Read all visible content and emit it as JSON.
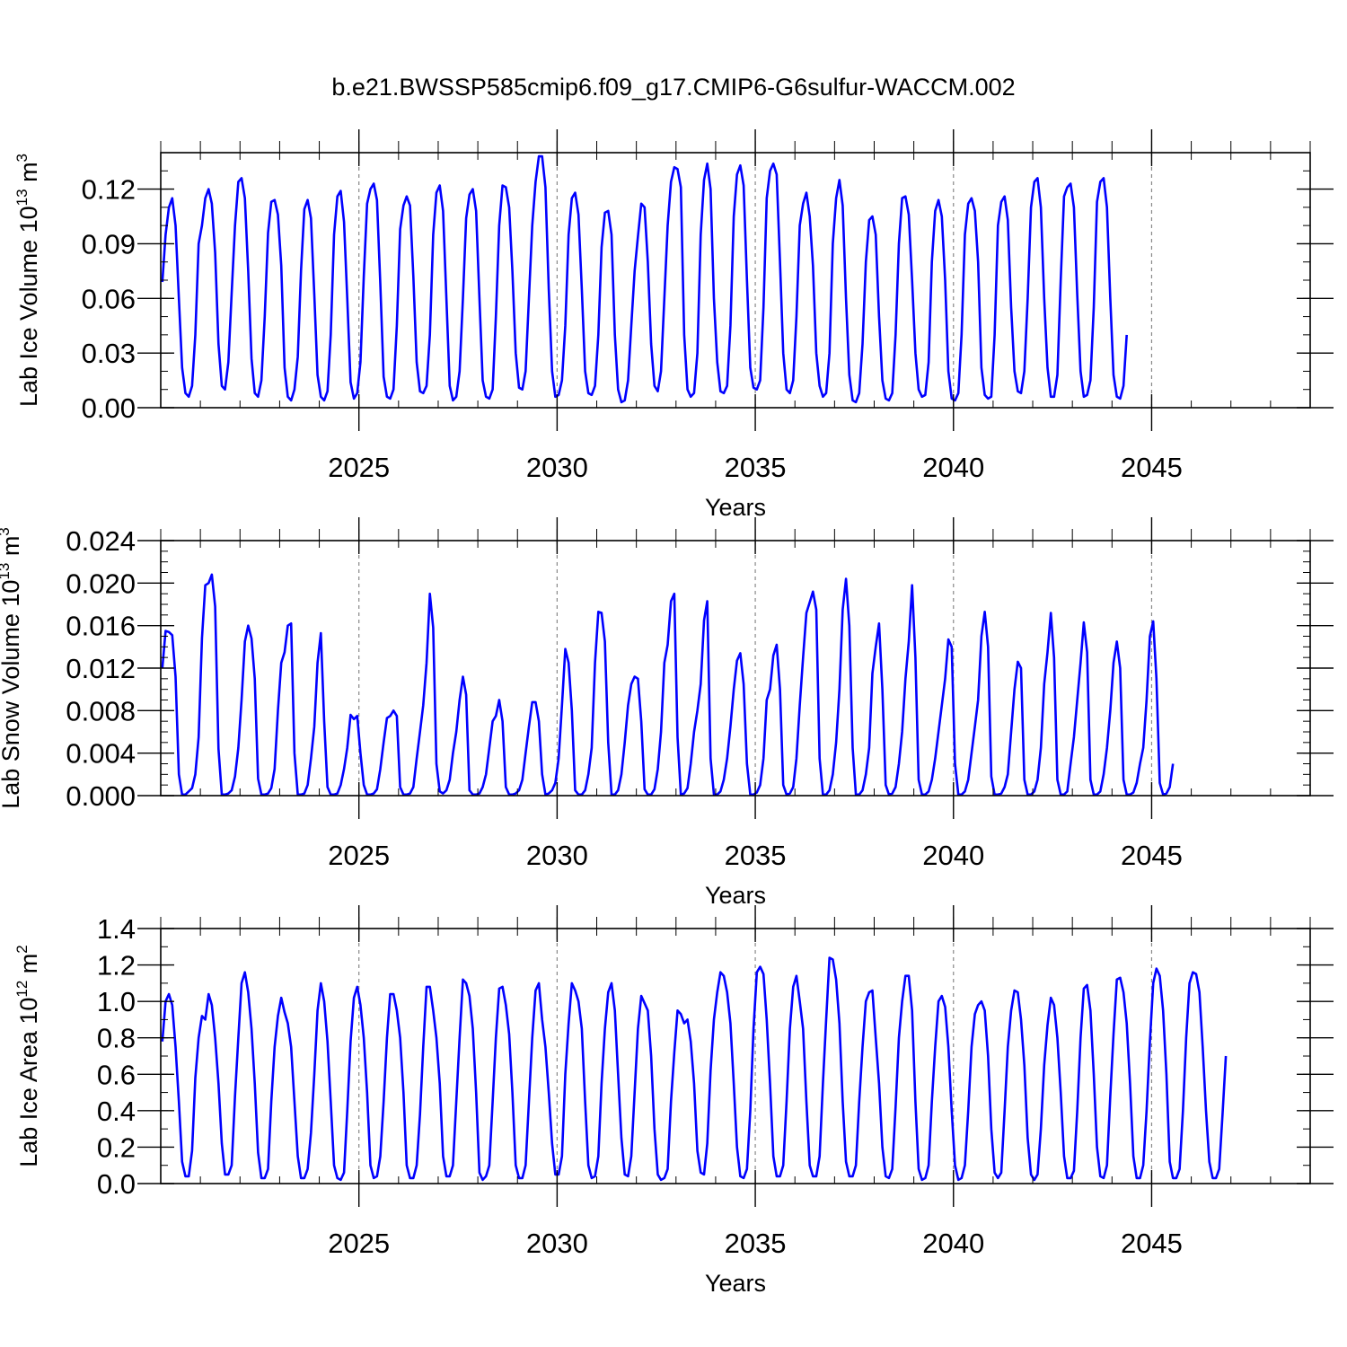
{
  "title": "b.e21.BWSSP585cmip6.f09_g17.CMIP6-G6sulfur-WACCM.002",
  "colors": {
    "line": "#0000ff",
    "axis": "#000000",
    "gridline": "#888888"
  },
  "chart_data": [
    {
      "type": "line",
      "name": "ice-volume",
      "ylabel": {
        "base": "Lab Ice Volume 10",
        "exp": "13",
        "unit": " m",
        "unit_exp": "3"
      },
      "xlabel": "Years",
      "xlim": [
        2020.0,
        2049.0
      ],
      "ylim": [
        0.0,
        0.14
      ],
      "yticks": [
        0.0,
        0.03,
        0.06,
        0.09,
        0.12
      ],
      "ytick_labels": [
        "0.00",
        "0.03",
        "0.06",
        "0.09",
        "0.12"
      ],
      "yminor_step": 0.01,
      "xticks": [
        2025,
        2030,
        2035,
        2040,
        2045
      ],
      "xtick_labels": [
        "2025",
        "2030",
        "2035",
        "2040",
        "2045"
      ],
      "vlines": [
        2025,
        2030,
        2035,
        2040,
        2045
      ],
      "grid": false,
      "start": 2020.04,
      "step": 0.08333,
      "values": [
        0.069,
        0.095,
        0.11,
        0.115,
        0.1,
        0.06,
        0.022,
        0.008,
        0.006,
        0.012,
        0.04,
        0.09,
        0.1,
        0.115,
        0.12,
        0.112,
        0.085,
        0.035,
        0.012,
        0.01,
        0.025,
        0.063,
        0.1,
        0.124,
        0.126,
        0.115,
        0.075,
        0.027,
        0.008,
        0.006,
        0.015,
        0.05,
        0.096,
        0.113,
        0.114,
        0.106,
        0.078,
        0.022,
        0.006,
        0.004,
        0.01,
        0.028,
        0.075,
        0.109,
        0.114,
        0.104,
        0.062,
        0.018,
        0.006,
        0.004,
        0.009,
        0.04,
        0.095,
        0.116,
        0.119,
        0.102,
        0.06,
        0.014,
        0.005,
        0.008,
        0.025,
        0.072,
        0.112,
        0.12,
        0.123,
        0.114,
        0.068,
        0.017,
        0.006,
        0.005,
        0.01,
        0.045,
        0.098,
        0.111,
        0.116,
        0.111,
        0.072,
        0.025,
        0.009,
        0.008,
        0.012,
        0.04,
        0.095,
        0.118,
        0.122,
        0.108,
        0.06,
        0.012,
        0.004,
        0.006,
        0.02,
        0.06,
        0.104,
        0.117,
        0.12,
        0.108,
        0.06,
        0.015,
        0.006,
        0.005,
        0.01,
        0.05,
        0.1,
        0.122,
        0.121,
        0.11,
        0.075,
        0.03,
        0.011,
        0.01,
        0.02,
        0.06,
        0.1,
        0.124,
        0.138,
        0.138,
        0.121,
        0.065,
        0.02,
        0.006,
        0.007,
        0.015,
        0.045,
        0.095,
        0.115,
        0.118,
        0.106,
        0.065,
        0.02,
        0.008,
        0.007,
        0.012,
        0.04,
        0.088,
        0.107,
        0.108,
        0.095,
        0.04,
        0.01,
        0.003,
        0.004,
        0.015,
        0.045,
        0.075,
        0.094,
        0.112,
        0.11,
        0.08,
        0.035,
        0.012,
        0.009,
        0.02,
        0.06,
        0.1,
        0.124,
        0.132,
        0.131,
        0.121,
        0.04,
        0.01,
        0.006,
        0.008,
        0.03,
        0.095,
        0.125,
        0.134,
        0.12,
        0.06,
        0.025,
        0.009,
        0.008,
        0.012,
        0.045,
        0.105,
        0.128,
        0.133,
        0.122,
        0.07,
        0.022,
        0.011,
        0.01,
        0.015,
        0.055,
        0.115,
        0.13,
        0.134,
        0.128,
        0.08,
        0.03,
        0.01,
        0.008,
        0.015,
        0.05,
        0.1,
        0.112,
        0.118,
        0.105,
        0.078,
        0.03,
        0.012,
        0.006,
        0.008,
        0.03,
        0.09,
        0.115,
        0.125,
        0.111,
        0.06,
        0.018,
        0.004,
        0.003,
        0.008,
        0.035,
        0.08,
        0.103,
        0.105,
        0.095,
        0.05,
        0.015,
        0.005,
        0.004,
        0.008,
        0.04,
        0.09,
        0.115,
        0.116,
        0.106,
        0.07,
        0.03,
        0.01,
        0.006,
        0.007,
        0.025,
        0.08,
        0.108,
        0.114,
        0.105,
        0.07,
        0.02,
        0.005,
        0.004,
        0.008,
        0.04,
        0.095,
        0.112,
        0.115,
        0.108,
        0.08,
        0.022,
        0.007,
        0.005,
        0.006,
        0.04,
        0.1,
        0.113,
        0.116,
        0.103,
        0.055,
        0.02,
        0.009,
        0.008,
        0.02,
        0.06,
        0.11,
        0.124,
        0.126,
        0.11,
        0.06,
        0.022,
        0.006,
        0.006,
        0.018,
        0.07,
        0.116,
        0.121,
        0.123,
        0.11,
        0.062,
        0.02,
        0.006,
        0.007,
        0.015,
        0.055,
        0.113,
        0.124,
        0.126,
        0.11,
        0.06,
        0.018,
        0.006,
        0.005,
        0.012,
        0.04
      ]
    },
    {
      "type": "line",
      "name": "snow-volume",
      "ylabel": {
        "base": "Lab Snow Volume 10",
        "exp": "13",
        "unit": " m",
        "unit_exp": "3"
      },
      "xlabel": "Years",
      "xlim": [
        2020.0,
        2049.0
      ],
      "ylim": [
        0.0,
        0.024
      ],
      "yticks": [
        0.0,
        0.004,
        0.008,
        0.012,
        0.016,
        0.02,
        0.024
      ],
      "ytick_labels": [
        "0.000",
        "0.004",
        "0.008",
        "0.012",
        "0.016",
        "0.020",
        "0.024"
      ],
      "yminor_step": 0.001,
      "xticks": [
        2025,
        2030,
        2035,
        2040,
        2045
      ],
      "xtick_labels": [
        "2025",
        "2030",
        "2035",
        "2040",
        "2045"
      ],
      "vlines": [
        2025,
        2030,
        2035,
        2040,
        2045
      ],
      "grid": false,
      "start": 2020.04,
      "step": 0.08333,
      "values": [
        0.012,
        0.0155,
        0.0154,
        0.0151,
        0.0112,
        0.002,
        0.0001,
        0.0001,
        0.0004,
        0.0007,
        0.002,
        0.0055,
        0.0148,
        0.0198,
        0.02,
        0.0208,
        0.0178,
        0.0044,
        0.0001,
        0.0001,
        0.0002,
        0.0005,
        0.0018,
        0.0045,
        0.009,
        0.0145,
        0.016,
        0.0148,
        0.011,
        0.0016,
        0.0001,
        0.0001,
        0.0002,
        0.0007,
        0.0025,
        0.008,
        0.0125,
        0.0135,
        0.016,
        0.0162,
        0.004,
        0.0001,
        0.0001,
        0.0002,
        0.001,
        0.0035,
        0.0065,
        0.0125,
        0.0153,
        0.007,
        0.0008,
        0.0001,
        0.0001,
        0.0002,
        0.001,
        0.0025,
        0.0045,
        0.0076,
        0.0072,
        0.0075,
        0.004,
        0.001,
        0.0001,
        0.0001,
        0.0002,
        0.0006,
        0.0025,
        0.005,
        0.0073,
        0.0075,
        0.008,
        0.0075,
        0.0008,
        0.0001,
        0.0001,
        0.0002,
        0.0008,
        0.0035,
        0.006,
        0.0085,
        0.0125,
        0.019,
        0.0158,
        0.003,
        0.0004,
        0.0002,
        0.0005,
        0.0015,
        0.004,
        0.006,
        0.009,
        0.0112,
        0.0095,
        0.0005,
        0.0001,
        0.0001,
        0.0002,
        0.0008,
        0.002,
        0.0045,
        0.007,
        0.0075,
        0.009,
        0.007,
        0.0008,
        0.0001,
        0.0001,
        0.0002,
        0.0005,
        0.0015,
        0.004,
        0.0065,
        0.0088,
        0.0088,
        0.007,
        0.002,
        0.0001,
        0.0002,
        0.0005,
        0.0012,
        0.0035,
        0.0085,
        0.0138,
        0.0125,
        0.008,
        0.0005,
        0.0001,
        0.0001,
        0.0005,
        0.002,
        0.0045,
        0.0125,
        0.0173,
        0.0172,
        0.0145,
        0.005,
        0.0001,
        0.0001,
        0.0005,
        0.002,
        0.005,
        0.0085,
        0.0105,
        0.0112,
        0.011,
        0.007,
        0.0006,
        0.0001,
        0.0001,
        0.0006,
        0.0025,
        0.006,
        0.0125,
        0.0142,
        0.0183,
        0.019,
        0.0055,
        0.0001,
        0.0002,
        0.0007,
        0.003,
        0.006,
        0.008,
        0.0105,
        0.0165,
        0.0183,
        0.0035,
        0.0001,
        0.0001,
        0.0004,
        0.0015,
        0.0035,
        0.0065,
        0.01,
        0.0127,
        0.0134,
        0.0105,
        0.003,
        0.0001,
        0.0001,
        0.0003,
        0.001,
        0.0035,
        0.009,
        0.01,
        0.0132,
        0.0142,
        0.01,
        0.001,
        0.0001,
        0.0002,
        0.0008,
        0.0035,
        0.0085,
        0.013,
        0.0172,
        0.0182,
        0.0192,
        0.0175,
        0.0035,
        0.0001,
        0.0001,
        0.0005,
        0.002,
        0.005,
        0.01,
        0.0175,
        0.0204,
        0.016,
        0.0045,
        0.0001,
        0.0001,
        0.0005,
        0.002,
        0.0045,
        0.0115,
        0.014,
        0.0162,
        0.01,
        0.001,
        0.0001,
        0.0002,
        0.0008,
        0.003,
        0.006,
        0.011,
        0.0145,
        0.0198,
        0.013,
        0.0015,
        0.0001,
        0.0001,
        0.0004,
        0.0015,
        0.0035,
        0.006,
        0.0085,
        0.011,
        0.0147,
        0.014,
        0.003,
        0.0001,
        0.0001,
        0.0004,
        0.0015,
        0.004,
        0.0065,
        0.009,
        0.015,
        0.0173,
        0.014,
        0.0018,
        0.0001,
        0.0001,
        0.0002,
        0.0008,
        0.002,
        0.006,
        0.01,
        0.0126,
        0.012,
        0.0015,
        0.0001,
        0.0001,
        0.0004,
        0.0015,
        0.0045,
        0.0105,
        0.0135,
        0.0172,
        0.013,
        0.0015,
        0.0001,
        0.0001,
        0.0004,
        0.003,
        0.0055,
        0.009,
        0.0125,
        0.0163,
        0.0135,
        0.0015,
        0.0001,
        0.0001,
        0.0004,
        0.002,
        0.0045,
        0.008,
        0.0125,
        0.0145,
        0.012,
        0.0015,
        0.0001,
        0.0001,
        0.0003,
        0.0012,
        0.003,
        0.0045,
        0.009,
        0.015,
        0.0164,
        0.011,
        0.0012,
        0.0001,
        0.0002,
        0.0008,
        0.003
      ]
    },
    {
      "type": "line",
      "name": "ice-area",
      "ylabel": {
        "base": "Lab Ice Area 10",
        "exp": "12",
        "unit": " m",
        "unit_exp": "2"
      },
      "xlabel": "Years",
      "xlim": [
        2020.0,
        2049.0
      ],
      "ylim": [
        0.0,
        1.4
      ],
      "yticks": [
        0.0,
        0.2,
        0.4,
        0.6,
        0.8,
        1.0,
        1.2,
        1.4
      ],
      "ytick_labels": [
        "0.0",
        "0.2",
        "0.4",
        "0.6",
        "0.8",
        "1.0",
        "1.2",
        "1.4"
      ],
      "yminor_step": 0.1,
      "xticks": [
        2025,
        2030,
        2035,
        2040,
        2045
      ],
      "xtick_labels": [
        "2025",
        "2030",
        "2035",
        "2040",
        "2045"
      ],
      "vlines": [
        2025,
        2030,
        2035,
        2040,
        2045
      ],
      "grid": false,
      "start": 2020.04,
      "step": 0.08333,
      "values": [
        0.78,
        1.0,
        1.04,
        0.98,
        0.75,
        0.45,
        0.12,
        0.04,
        0.04,
        0.18,
        0.58,
        0.8,
        0.92,
        0.9,
        1.04,
        0.98,
        0.8,
        0.55,
        0.22,
        0.05,
        0.05,
        0.1,
        0.48,
        0.8,
        1.1,
        1.16,
        1.05,
        0.85,
        0.55,
        0.17,
        0.03,
        0.03,
        0.08,
        0.45,
        0.75,
        0.92,
        1.02,
        0.94,
        0.88,
        0.75,
        0.45,
        0.15,
        0.03,
        0.03,
        0.08,
        0.28,
        0.6,
        0.95,
        1.1,
        1.0,
        0.78,
        0.45,
        0.1,
        0.03,
        0.02,
        0.06,
        0.4,
        0.78,
        1.02,
        1.08,
        0.98,
        0.8,
        0.5,
        0.1,
        0.03,
        0.04,
        0.15,
        0.45,
        0.8,
        1.04,
        1.04,
        0.95,
        0.8,
        0.5,
        0.1,
        0.03,
        0.03,
        0.1,
        0.38,
        0.75,
        1.08,
        1.08,
        0.95,
        0.8,
        0.55,
        0.15,
        0.04,
        0.04,
        0.1,
        0.45,
        0.8,
        1.12,
        1.1,
        1.03,
        0.85,
        0.5,
        0.06,
        0.02,
        0.04,
        0.1,
        0.45,
        0.8,
        1.07,
        1.08,
        0.98,
        0.82,
        0.5,
        0.1,
        0.03,
        0.03,
        0.1,
        0.45,
        0.8,
        1.06,
        1.1,
        0.9,
        0.75,
        0.5,
        0.22,
        0.05,
        0.05,
        0.15,
        0.6,
        0.88,
        1.1,
        1.06,
        1.0,
        0.85,
        0.45,
        0.1,
        0.03,
        0.04,
        0.15,
        0.55,
        0.85,
        1.05,
        1.1,
        0.95,
        0.6,
        0.25,
        0.05,
        0.04,
        0.15,
        0.5,
        0.85,
        1.03,
        0.99,
        0.95,
        0.7,
        0.3,
        0.05,
        0.02,
        0.03,
        0.08,
        0.45,
        0.72,
        0.95,
        0.93,
        0.88,
        0.9,
        0.78,
        0.55,
        0.18,
        0.06,
        0.05,
        0.22,
        0.62,
        0.9,
        1.05,
        1.16,
        1.14,
        1.05,
        0.88,
        0.55,
        0.2,
        0.04,
        0.03,
        0.08,
        0.4,
        0.85,
        1.16,
        1.19,
        1.15,
        0.9,
        0.55,
        0.15,
        0.04,
        0.04,
        0.1,
        0.45,
        0.85,
        1.08,
        1.14,
        1.0,
        0.85,
        0.45,
        0.1,
        0.04,
        0.04,
        0.15,
        0.55,
        0.9,
        1.24,
        1.23,
        1.12,
        0.88,
        0.45,
        0.12,
        0.04,
        0.04,
        0.1,
        0.45,
        0.75,
        1.0,
        1.05,
        1.06,
        0.8,
        0.55,
        0.2,
        0.04,
        0.03,
        0.08,
        0.42,
        0.8,
        1.0,
        1.14,
        1.14,
        0.95,
        0.45,
        0.08,
        0.02,
        0.03,
        0.1,
        0.45,
        0.75,
        1.0,
        1.03,
        0.97,
        0.75,
        0.4,
        0.1,
        0.02,
        0.03,
        0.1,
        0.4,
        0.75,
        0.93,
        0.98,
        1.0,
        0.95,
        0.7,
        0.3,
        0.06,
        0.03,
        0.06,
        0.4,
        0.75,
        0.95,
        1.06,
        1.05,
        0.9,
        0.65,
        0.25,
        0.05,
        0.02,
        0.05,
        0.3,
        0.65,
        0.87,
        1.02,
        0.98,
        0.8,
        0.5,
        0.15,
        0.03,
        0.03,
        0.07,
        0.4,
        0.8,
        1.07,
        1.09,
        0.95,
        0.6,
        0.2,
        0.04,
        0.03,
        0.1,
        0.48,
        0.82,
        1.12,
        1.13,
        1.05,
        0.88,
        0.55,
        0.15,
        0.03,
        0.03,
        0.1,
        0.4,
        0.78,
        1.1,
        1.18,
        1.14,
        0.95,
        0.6,
        0.12,
        0.03,
        0.03,
        0.08,
        0.4,
        0.8,
        1.1,
        1.16,
        1.15,
        1.05,
        0.75,
        0.4,
        0.12,
        0.03,
        0.03,
        0.08,
        0.38,
        0.7
      ]
    }
  ]
}
